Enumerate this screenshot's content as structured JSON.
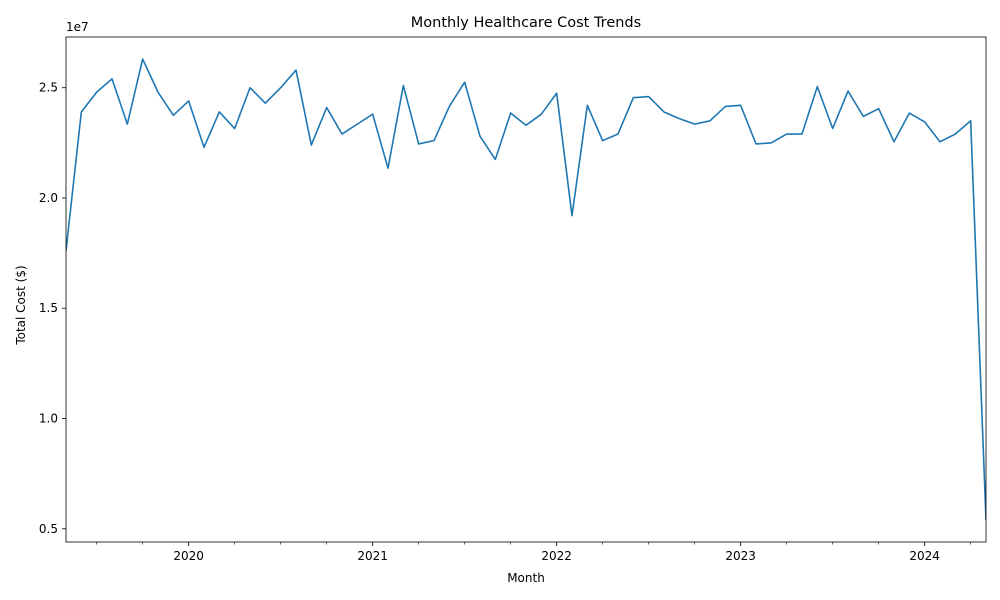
{
  "chart_data": {
    "type": "line",
    "title": "Monthly Healthcare Cost Trends",
    "xlabel": "Month",
    "ylabel": "Total Cost ($)",
    "y_multiplier_label": "1e7",
    "x": [
      "2019-05",
      "2019-06",
      "2019-07",
      "2019-08",
      "2019-09",
      "2019-10",
      "2019-11",
      "2019-12",
      "2020-01",
      "2020-02",
      "2020-03",
      "2020-04",
      "2020-05",
      "2020-06",
      "2020-07",
      "2020-08",
      "2020-09",
      "2020-10",
      "2020-11",
      "2020-12",
      "2021-01",
      "2021-02",
      "2021-03",
      "2021-04",
      "2021-05",
      "2021-06",
      "2021-07",
      "2021-08",
      "2021-09",
      "2021-10",
      "2021-11",
      "2021-12",
      "2022-01",
      "2022-02",
      "2022-03",
      "2022-04",
      "2022-05",
      "2022-06",
      "2022-07",
      "2022-08",
      "2022-09",
      "2022-10",
      "2022-11",
      "2022-12",
      "2023-01",
      "2023-02",
      "2023-03",
      "2023-04",
      "2023-05",
      "2023-06",
      "2023-07",
      "2023-08",
      "2023-09",
      "2023-10",
      "2023-11",
      "2023-12",
      "2024-01",
      "2024-02",
      "2024-03",
      "2024-04",
      "2024-05"
    ],
    "series": [
      {
        "values": [
          17600000,
          23900000,
          24800000,
          25400000,
          23350000,
          26300000,
          24800000,
          23750000,
          24400000,
          22300000,
          23900000,
          23150000,
          25000000,
          24300000,
          25000000,
          25800000,
          22400000,
          24100000,
          22900000,
          23350000,
          23800000,
          21350000,
          25100000,
          22450000,
          22600000,
          24150000,
          25250000,
          22800000,
          21750000,
          23850000,
          23300000,
          23800000,
          24750000,
          19200000,
          24200000,
          22600000,
          22900000,
          24550000,
          24600000,
          23900000,
          23600000,
          23350000,
          23500000,
          24150000,
          24200000,
          22450000,
          22500000,
          22900000,
          22900000,
          25050000,
          23150000,
          24850000,
          23700000,
          24050000,
          22550000,
          23850000,
          23450000,
          22550000,
          22900000,
          23500000,
          5400000
        ]
      }
    ],
    "yticks": [
      5000000,
      10000000,
      15000000,
      20000000,
      25000000
    ],
    "ytick_labels": [
      "0.5",
      "1.0",
      "1.5",
      "2.0",
      "2.5"
    ],
    "xtick_labels": [
      {
        "date": "2020-01",
        "label": "2020"
      },
      {
        "date": "2021-01",
        "label": "2021"
      },
      {
        "date": "2022-01",
        "label": "2022"
      },
      {
        "date": "2023-01",
        "label": "2023"
      },
      {
        "date": "2024-01",
        "label": "2024"
      }
    ],
    "xlim": [
      "2019-05",
      "2024-05"
    ],
    "ylim": [
      4400000,
      27300000
    ],
    "grid": false,
    "line_color": "#1f77b4"
  }
}
